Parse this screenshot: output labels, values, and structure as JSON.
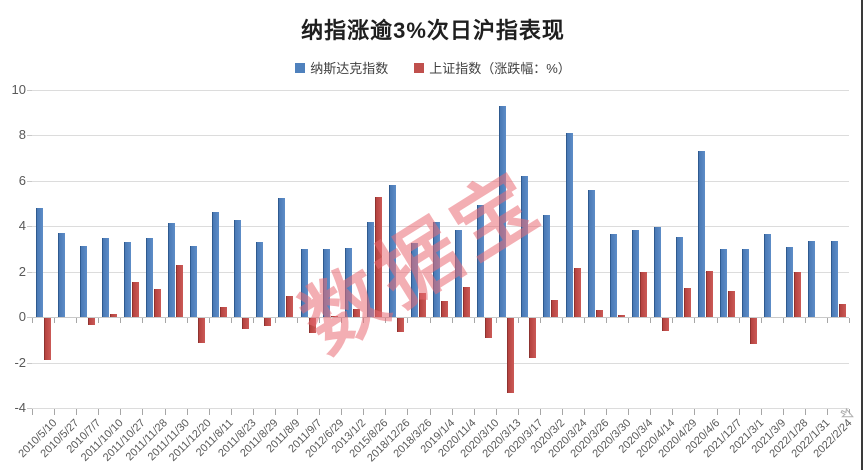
{
  "title": "纳指涨逾3%次日沪指表现",
  "watermark": "数据宝",
  "legend": [
    {
      "label": "纳斯达克指数",
      "color": "#4f81bd"
    },
    {
      "label": "上证指数（涨跌幅：%）",
      "color": "#c0504d"
    }
  ],
  "chart_data": {
    "type": "bar",
    "title": "纳指涨逾3%次日沪指表现",
    "categories": [
      "2010/5/10",
      "2010/5/27",
      "2010/7/7",
      "2011/10/10",
      "2011/10/27",
      "2011/11/28",
      "2011/11/30",
      "2011/12/20",
      "2011/8/11",
      "2011/8/23",
      "2011/8/29",
      "2011/8/9",
      "2011/9/7",
      "2012/6/29",
      "2013/1/2",
      "2015/8/26",
      "2018/12/26",
      "2018/3/26",
      "2019/1/4",
      "2020/11/4",
      "2020/3/10",
      "2020/3/13",
      "2020/3/17",
      "2020/3/2",
      "2020/3/24",
      "2020/3/26",
      "2020/3/30",
      "2020/3/4",
      "2020/4/14",
      "2020/4/29",
      "2020/4/6",
      "2021/12/7",
      "2021/3/1",
      "2021/3/9",
      "2022/1/28",
      "2022/1/31",
      "2022/2/24"
    ],
    "series": [
      {
        "name": "纳斯达克指数",
        "color": "#4f81bd",
        "values": [
          4.8,
          3.7,
          3.15,
          3.5,
          3.3,
          3.5,
          4.15,
          3.15,
          4.65,
          4.3,
          3.3,
          5.25,
          3.0,
          3.0,
          3.05,
          4.2,
          5.8,
          3.25,
          4.2,
          3.85,
          4.95,
          9.3,
          6.2,
          4.5,
          8.1,
          5.6,
          3.65,
          3.85,
          3.95,
          3.55,
          7.3,
          3.0,
          3.0,
          3.65,
          3.1,
          3.35,
          3.35
        ]
      },
      {
        "name": "上证指数（涨跌幅：%）",
        "color": "#c0504d",
        "values": [
          -1.85,
          0,
          -0.3,
          0.15,
          1.55,
          1.25,
          2.3,
          -1.1,
          0.45,
          -0.5,
          -0.35,
          0.95,
          -0.65,
          0.05,
          0.35,
          5.3,
          -0.6,
          1.05,
          0.7,
          1.35,
          -0.9,
          -3.3,
          -1.75,
          0.75,
          2.15,
          0.3,
          0.1,
          2.0,
          -0.55,
          1.3,
          2.05,
          1.15,
          -1.15,
          0,
          2.0,
          0,
          0.6
        ]
      }
    ],
    "xlabel": "",
    "ylabel": "",
    "ylim": [
      -4,
      10
    ],
    "ytick_step": 2,
    "grid": true,
    "legend_position": "top",
    "x_labels_rotation_deg": -45
  }
}
